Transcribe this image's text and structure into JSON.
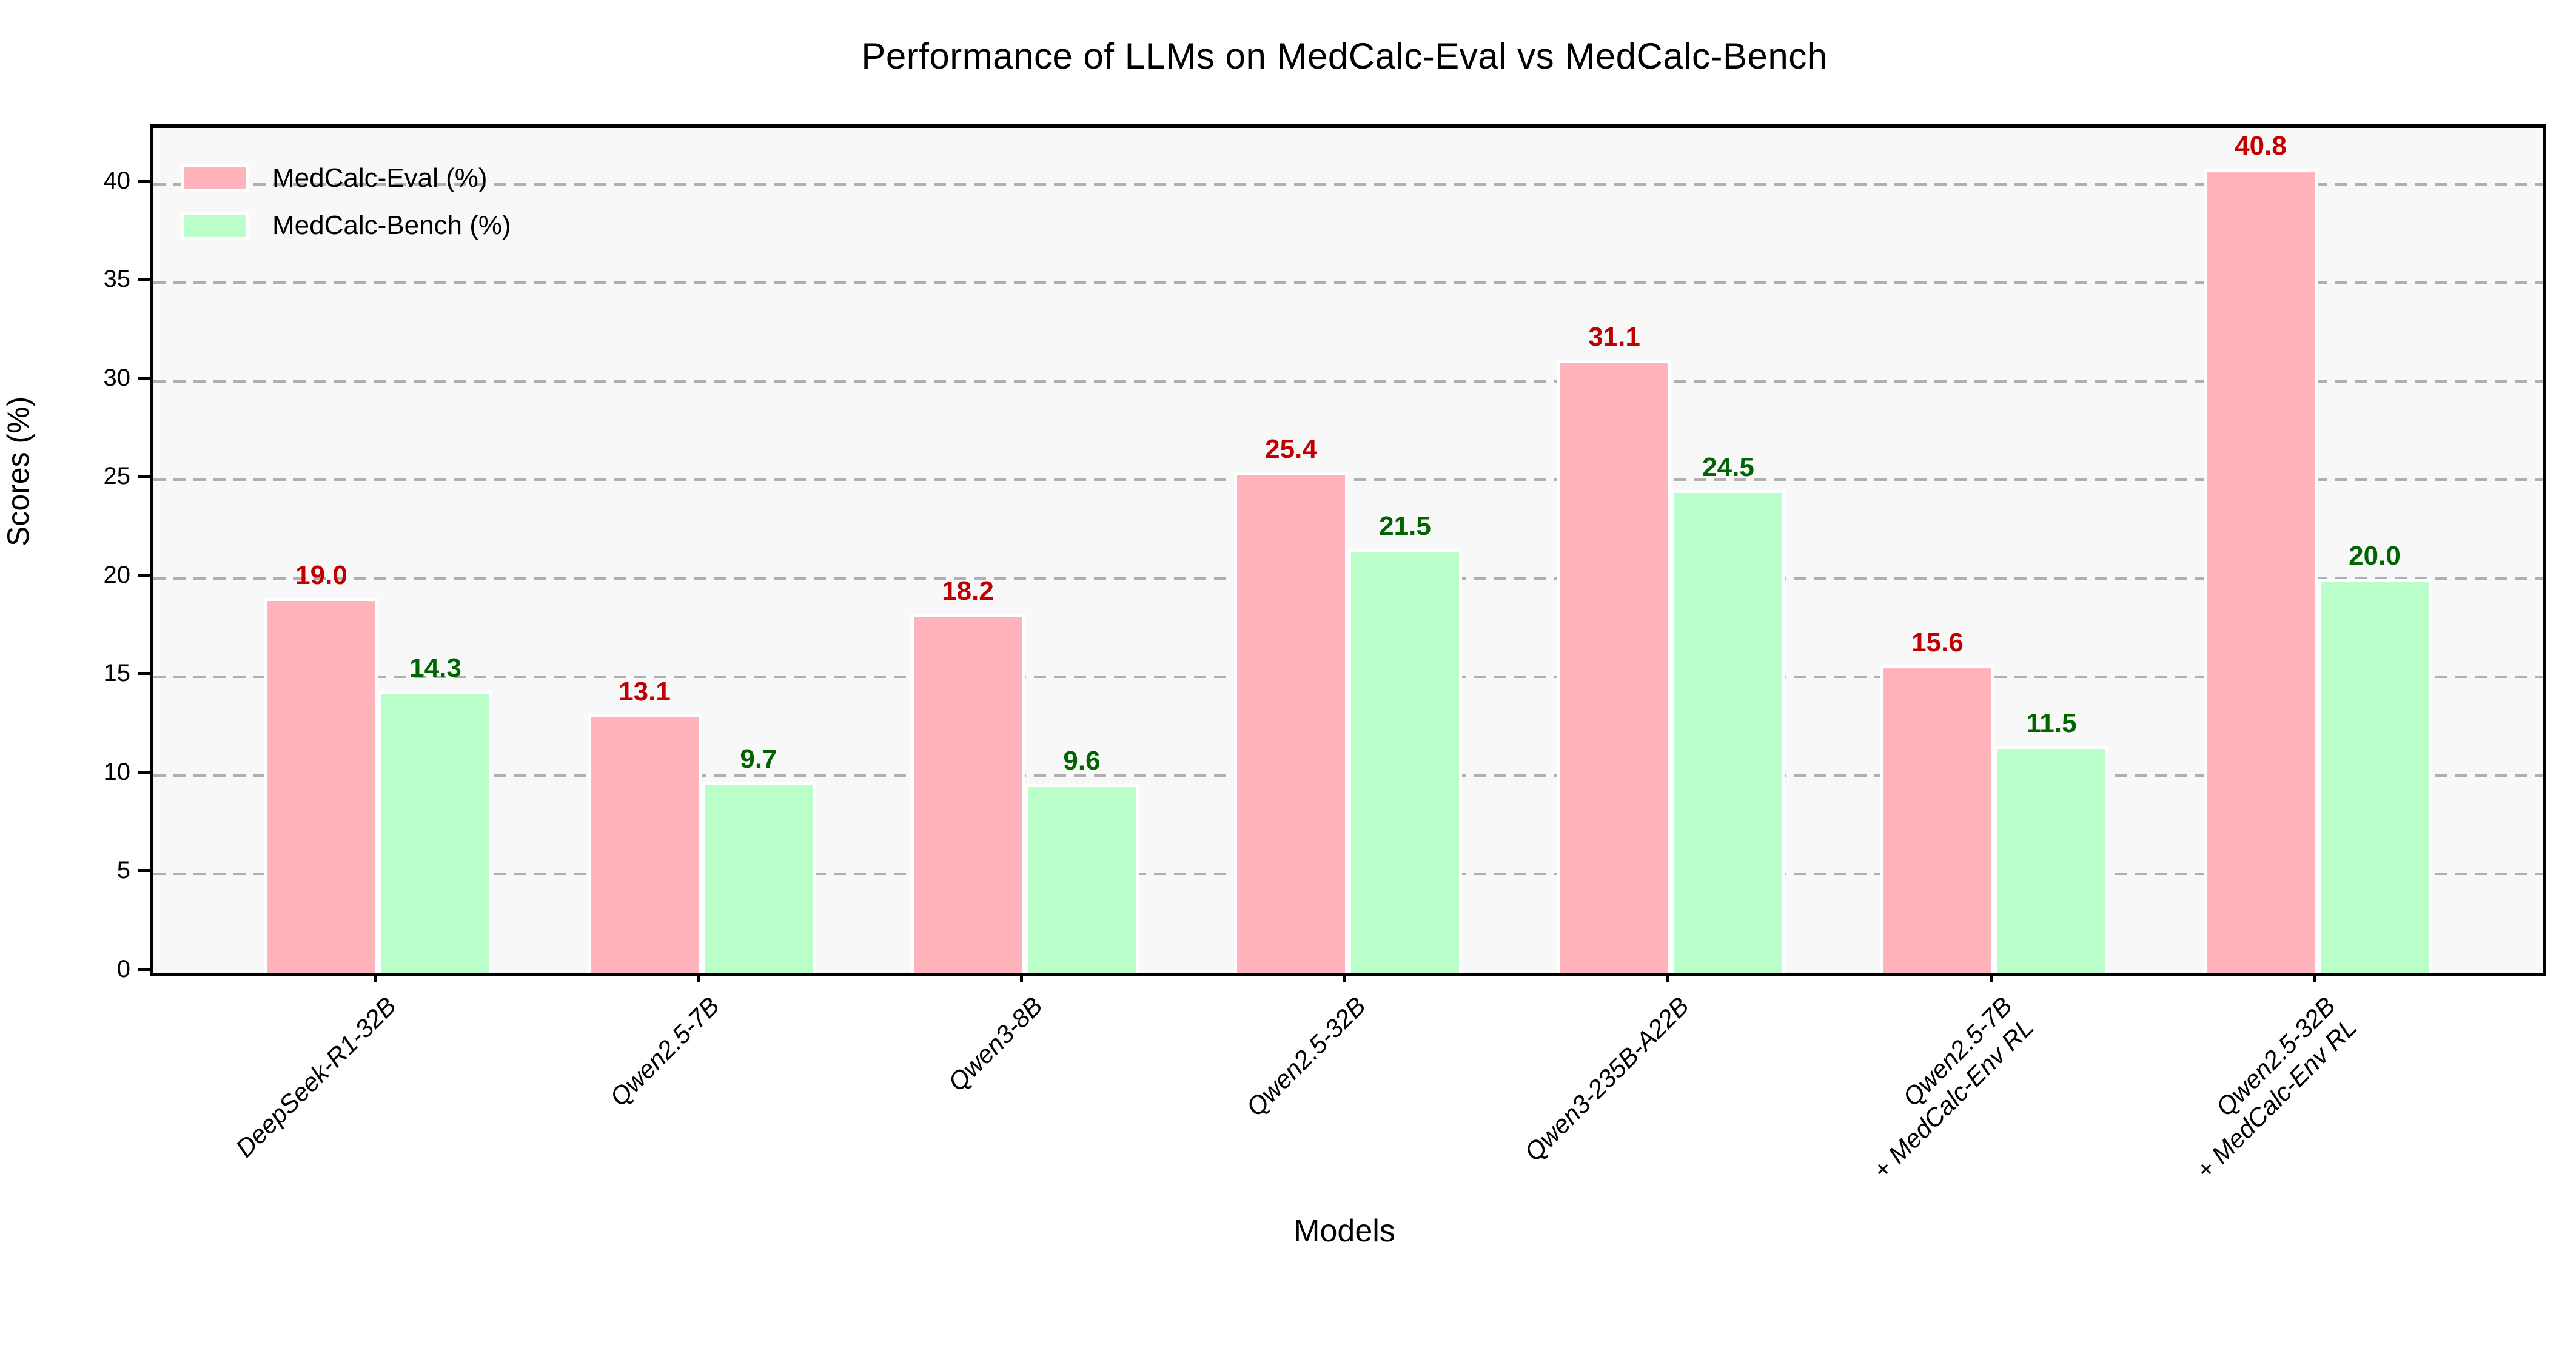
{
  "chart_data": {
    "type": "bar",
    "title": "Performance of LLMs on MedCalc-Eval vs MedCalc-Bench",
    "xlabel": "Models",
    "ylabel": "Scores (%)",
    "ylim": [
      0,
      42.86
    ],
    "yticks": [
      0,
      5,
      10,
      15,
      20,
      25,
      30,
      35,
      40
    ],
    "grid": "horizontal-dashed",
    "legend_position": "upper-left",
    "value_label_format": "1-decimal",
    "categories": [
      "DeepSeek-R1-32B",
      "Qwen2.5-7B",
      "Qwen3-8B",
      "Qwen2.5-32B",
      "Qwen3-235B-A22B",
      "Qwen2.5-7B\n+ MedCalc-Env RL",
      "Qwen2.5-32B\n+ MedCalc-Env RL"
    ],
    "series": [
      {
        "name": "MedCalc-Eval (%)",
        "color": "#ffb3ba",
        "label_color": "#c00000",
        "values": [
          19.0,
          13.1,
          18.2,
          25.4,
          31.1,
          15.6,
          40.8
        ]
      },
      {
        "name": "MedCalc-Bench (%)",
        "color": "#baffc9",
        "label_color": "#006400",
        "values": [
          14.3,
          9.7,
          9.6,
          21.5,
          24.5,
          11.5,
          20.0
        ]
      }
    ]
  },
  "style": {
    "figure_bg": "#ffffff",
    "plot_bg": "#f8f8f8",
    "grid_color": "#b0b0b0",
    "spine_color": "#000000",
    "bar_edge_color": "#ffffff"
  }
}
